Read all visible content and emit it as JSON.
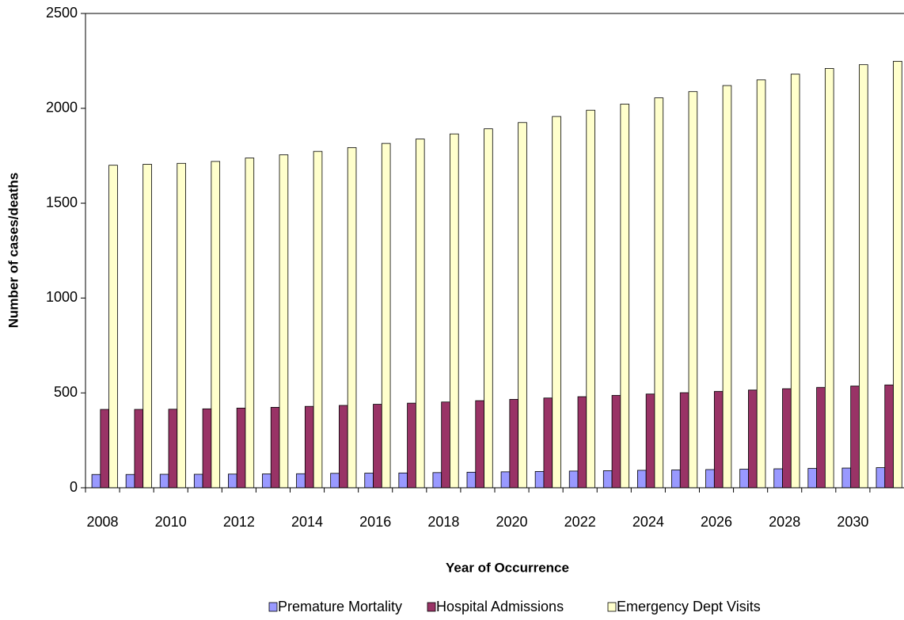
{
  "chart_data": {
    "type": "bar",
    "x_label": "Year of Occurrence",
    "y_label": "Number of cases/deaths",
    "categories": [
      "2008",
      null,
      "2010",
      null,
      "2012",
      null,
      "2014",
      null,
      "2016",
      null,
      "2018",
      null,
      "2020",
      null,
      "2022",
      null,
      "2024",
      null,
      "2026",
      null,
      "2028",
      null,
      "2030",
      null
    ],
    "series": [
      {
        "name": "Premature Mortality",
        "color": "#9999ff",
        "values": [
          70,
          70,
          71,
          71,
          72,
          73,
          74,
          76,
          77,
          78,
          80,
          82,
          84,
          86,
          88,
          90,
          92,
          94,
          96,
          98,
          100,
          102,
          104,
          106
        ]
      },
      {
        "name": "Hospital Admissions",
        "color": "#993366",
        "values": [
          413,
          413,
          414,
          416,
          420,
          424,
          429,
          434,
          440,
          446,
          452,
          459,
          466,
          473,
          480,
          487,
          494,
          501,
          508,
          515,
          522,
          529,
          536,
          542
        ]
      },
      {
        "name": "Emergency Dept Visits",
        "color": "#ffffcc",
        "values": [
          1700,
          1705,
          1710,
          1720,
          1738,
          1755,
          1773,
          1793,
          1815,
          1838,
          1865,
          1892,
          1925,
          1957,
          1990,
          2022,
          2055,
          2088,
          2120,
          2150,
          2180,
          2210,
          2230,
          2248
        ]
      }
    ],
    "ylim": [
      0,
      2500
    ],
    "yticks": [
      0,
      500,
      1000,
      1500,
      2000,
      2500
    ],
    "legend": "bottom"
  }
}
